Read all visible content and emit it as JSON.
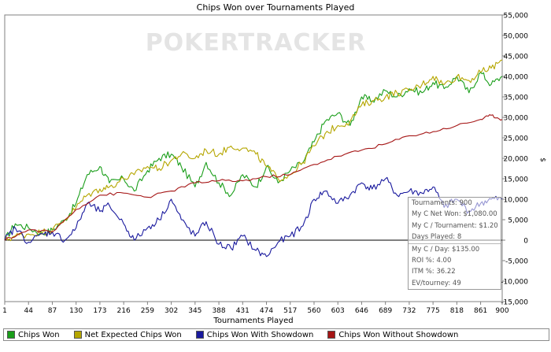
{
  "watermark": "POKERTRACKER",
  "chart_data": {
    "type": "line",
    "title": "Chips Won over Tournaments Played",
    "xlabel": "Tournaments Played",
    "ylabel": "$",
    "xlim": [
      1,
      900
    ],
    "ylim": [
      -15000,
      55000
    ],
    "x_ticks": [
      "1",
      "44",
      "87",
      "130",
      "173",
      "216",
      "259",
      "302",
      "345",
      "388",
      "431",
      "474",
      "517",
      "560",
      "603",
      "646",
      "689",
      "732",
      "775",
      "818",
      "861",
      "900"
    ],
    "y_ticks": [
      "55,000",
      "50,000",
      "45,000",
      "40,000",
      "35,000",
      "30,000",
      "25,000",
      "20,000",
      "15,000",
      "10,000",
      "5,000",
      "0",
      "-5,000",
      "-10,000",
      "-15,000"
    ],
    "legend_position": "bottom",
    "grid": false,
    "series": [
      {
        "name": "Chips Won",
        "color": "#1a9e1a",
        "x": [
          1,
          20,
          44,
          70,
          87,
          110,
          130,
          150,
          173,
          190,
          216,
          235,
          259,
          280,
          302,
          320,
          345,
          365,
          388,
          410,
          431,
          455,
          474,
          495,
          517,
          540,
          560,
          580,
          603,
          625,
          646,
          665,
          689,
          710,
          732,
          755,
          775,
          795,
          818,
          840,
          861,
          880,
          900
        ],
        "y": [
          0,
          4000,
          3000,
          1500,
          2500,
          5000,
          9000,
          16000,
          18000,
          14000,
          15000,
          12000,
          17000,
          20000,
          21000,
          18000,
          13000,
          19000,
          14000,
          11000,
          16000,
          13000,
          18000,
          14000,
          17000,
          19000,
          24000,
          29000,
          31000,
          28000,
          35000,
          34000,
          36500,
          35000,
          37000,
          36000,
          38500,
          37000,
          40000,
          36000,
          41000,
          38000,
          40000
        ]
      },
      {
        "name": "Net Expected Chips Won",
        "color": "#b5a600",
        "x": [
          1,
          20,
          44,
          70,
          87,
          110,
          130,
          150,
          173,
          190,
          216,
          235,
          259,
          280,
          302,
          320,
          345,
          365,
          388,
          410,
          431,
          455,
          474,
          495,
          517,
          540,
          560,
          580,
          603,
          625,
          646,
          665,
          689,
          710,
          732,
          755,
          775,
          795,
          818,
          840,
          861,
          880,
          900
        ],
        "y": [
          0,
          1000,
          1500,
          2000,
          2500,
          5000,
          8000,
          11000,
          12500,
          13000,
          15000,
          16000,
          18000,
          17500,
          19500,
          21000,
          20000,
          22000,
          21000,
          23000,
          22500,
          21000,
          18000,
          15000,
          16000,
          19000,
          23000,
          26000,
          28000,
          29000,
          33000,
          34000,
          35000,
          36000,
          36500,
          38000,
          40000,
          38000,
          40000,
          39000,
          41000,
          42000,
          44000
        ]
      },
      {
        "name": "Chips Won With Showdown",
        "color": "#1a1a9e",
        "x": [
          1,
          20,
          44,
          70,
          87,
          110,
          130,
          150,
          173,
          190,
          216,
          235,
          259,
          280,
          302,
          320,
          345,
          365,
          388,
          410,
          431,
          455,
          474,
          495,
          517,
          540,
          560,
          580,
          603,
          625,
          646,
          665,
          689,
          710,
          732,
          755,
          775,
          795,
          818,
          840,
          861,
          880,
          900
        ],
        "y": [
          0,
          3000,
          -500,
          1500,
          2000,
          0,
          3000,
          9000,
          7000,
          8500,
          4000,
          0,
          3000,
          5000,
          10000,
          5000,
          1000,
          4500,
          -1000,
          -2000,
          1000,
          -2500,
          -4000,
          -500,
          1000,
          3500,
          10000,
          12000,
          9000,
          11000,
          14000,
          12500,
          15000,
          11000,
          12000,
          11500,
          13000,
          8000,
          10000,
          7000,
          9000,
          10000,
          10000
        ]
      },
      {
        "name": "Chips Won Without Showdown",
        "color": "#a51515",
        "x": [
          1,
          44,
          87,
          130,
          173,
          216,
          259,
          302,
          345,
          388,
          431,
          474,
          517,
          560,
          603,
          646,
          689,
          732,
          775,
          818,
          861,
          880,
          900
        ],
        "y": [
          0,
          2500,
          2000,
          7500,
          11000,
          11500,
          10500,
          12000,
          14000,
          14500,
          14500,
          15500,
          16000,
          18500,
          20500,
          22000,
          23500,
          25500,
          26500,
          28000,
          29500,
          30500,
          29500
        ]
      }
    ],
    "annotation_box": [
      "Tournaments: 900",
      "My C Net Won: $1,080.00",
      "My C / Tournament: $1.20",
      "Days Played: 8",
      "My C / Day: $135.00",
      "ROI %: 4.00",
      "ITM %: 36.22",
      "EV/tourney: 49"
    ]
  }
}
